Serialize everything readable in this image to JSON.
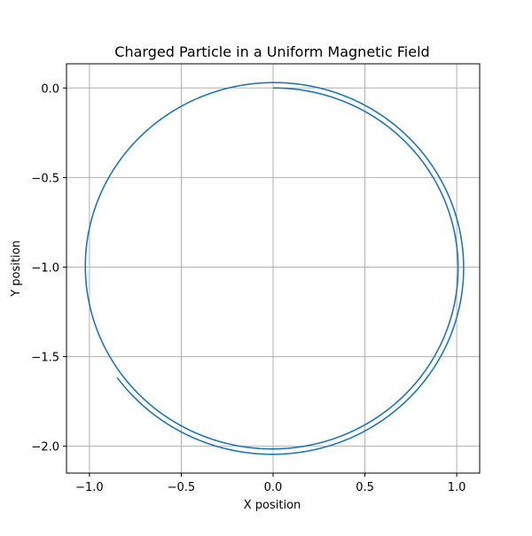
{
  "chart_data": {
    "type": "line",
    "title": "Charged Particle in a Uniform Magnetic Field",
    "xlabel": "X position",
    "ylabel": "Y position",
    "xlim": [
      -1.125,
      1.125
    ],
    "ylim": [
      -2.15,
      0.135
    ],
    "grid": true,
    "line_color": "#1f77b4",
    "x_ticks": [
      {
        "value": -1.0,
        "label": "−1.0"
      },
      {
        "value": -0.5,
        "label": "−0.5"
      },
      {
        "value": 0.0,
        "label": "0.0"
      },
      {
        "value": 0.5,
        "label": "0.5"
      },
      {
        "value": 1.0,
        "label": "1.0"
      }
    ],
    "y_ticks": [
      {
        "value": 0.0,
        "label": "0.0"
      },
      {
        "value": -0.5,
        "label": "−0.5"
      },
      {
        "value": -1.0,
        "label": "−1.0"
      },
      {
        "value": -1.5,
        "label": "−1.5"
      },
      {
        "value": -2.0,
        "label": "−2.0"
      }
    ],
    "series": [
      {
        "trajectory": {
          "center": [
            0.0,
            -1.0
          ],
          "start": [
            0.0,
            0.0
          ],
          "start_radius": 1.0,
          "radius_growth_per_turn": 0.03,
          "turns": 1.65,
          "direction": "clockwise"
        }
      }
    ]
  }
}
